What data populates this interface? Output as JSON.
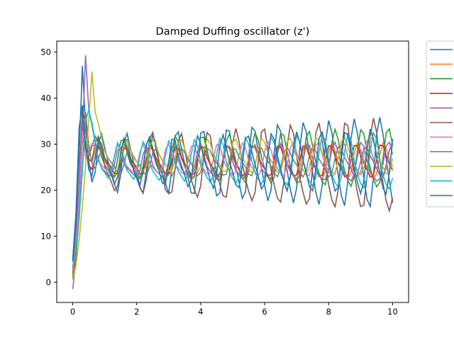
{
  "chart_data": {
    "type": "line",
    "title": "Damped Duffing oscillator (z')",
    "xlabel": "",
    "ylabel": "",
    "xlim": [
      -0.5,
      10.5
    ],
    "ylim": [
      -4.4,
      52.4
    ],
    "xticks": [
      0,
      2,
      4,
      6,
      8,
      10
    ],
    "yticks": [
      0,
      10,
      20,
      30,
      40,
      50
    ],
    "grid": false,
    "legend": "outside-top-right",
    "x": [
      0.0,
      0.1,
      0.2,
      0.3,
      0.4,
      0.5,
      0.6,
      0.7,
      0.8,
      0.9,
      1.0,
      1.1,
      1.2,
      1.3,
      1.4,
      1.5,
      1.6,
      1.7,
      1.8,
      1.9,
      2.0,
      2.1,
      2.2,
      2.3,
      2.4,
      2.5,
      2.6,
      2.7,
      2.8,
      2.9,
      3.0,
      3.1,
      3.2,
      3.3,
      3.4,
      3.5,
      3.6,
      3.7,
      3.8,
      3.9,
      4.0,
      4.1,
      4.2,
      4.3,
      4.4,
      4.5,
      4.6,
      4.7,
      4.8,
      4.9,
      5.0,
      5.1,
      5.2,
      5.3,
      5.4,
      5.5,
      5.6,
      5.7,
      5.8,
      5.9,
      6.0,
      6.1,
      6.2,
      6.3,
      6.4,
      6.5,
      6.6,
      6.7,
      6.8,
      6.9,
      7.0,
      7.1,
      7.2,
      7.3,
      7.4,
      7.5,
      7.6,
      7.7,
      7.8,
      7.9,
      8.0,
      8.1,
      8.2,
      8.3,
      8.4,
      8.5,
      8.6,
      8.7,
      8.8,
      8.9,
      9.0,
      9.1,
      9.2,
      9.3,
      9.4,
      9.5,
      9.6,
      9.7,
      9.8,
      9.9,
      10.0
    ],
    "series": [
      {
        "color": "#1f77b4",
        "base": 25.8,
        "amp": 5.0,
        "period": 0.79,
        "phase": 0.4,
        "growth": 0.09,
        "start": 4.5,
        "peak": 47.0,
        "peak_t": 0.3
      },
      {
        "color": "#ff7f0e",
        "base": 26.0,
        "amp": 3.0,
        "period": 0.81,
        "phase": 1.3,
        "growth": 0.02,
        "start": 1.5,
        "peak": 40.0,
        "peak_t": 0.35
      },
      {
        "color": "#2ca02c",
        "base": 26.5,
        "amp": 3.5,
        "period": 0.83,
        "phase": 2.1,
        "growth": 0.08,
        "start": 2.0,
        "peak": 38.0,
        "peak_t": 0.35
      },
      {
        "color": "#d62728",
        "base": 26.2,
        "amp": 2.5,
        "period": 0.8,
        "phase": 0.9,
        "growth": 0.04,
        "start": 1.0,
        "peak": 35.0,
        "peak_t": 0.3
      },
      {
        "color": "#9467bd",
        "base": 25.6,
        "amp": 2.8,
        "period": 0.84,
        "phase": 3.0,
        "growth": 0.05,
        "start": -1.5,
        "peak": 49.3,
        "peak_t": 0.4
      },
      {
        "color": "#8c564b",
        "base": 25.0,
        "amp": 4.5,
        "period": 0.86,
        "phase": 1.8,
        "growth": 0.12,
        "start": 3.0,
        "peak": 46.0,
        "peak_t": 0.35
      },
      {
        "color": "#e377c2",
        "base": 26.3,
        "amp": 2.6,
        "period": 0.78,
        "phase": 2.5,
        "growth": 0.05,
        "start": 2.5,
        "peak": 33.0,
        "peak_t": 0.3
      },
      {
        "color": "#7f7f7f",
        "base": 26.1,
        "amp": 2.4,
        "period": 0.82,
        "phase": 0.2,
        "growth": 0.03,
        "start": 1.2,
        "peak": 37.0,
        "peak_t": 0.4
      },
      {
        "color": "#bcbd22",
        "base": 27.2,
        "amp": 2.8,
        "period": 0.85,
        "phase": 1.5,
        "growth": 0.04,
        "start": 0.5,
        "peak": 45.8,
        "peak_t": 0.6
      },
      {
        "color": "#17becf",
        "base": 25.8,
        "amp": 3.2,
        "period": 0.8,
        "phase": 2.8,
        "growth": 0.09,
        "start": 3.5,
        "peak": 41.0,
        "peak_t": 0.45
      },
      {
        "color": "#1f77b4",
        "base": 26.0,
        "amp": 4.0,
        "period": 0.77,
        "phase": 0.7,
        "growth": 0.07,
        "start": 5.0,
        "peak": 45.0,
        "peak_t": 0.25
      }
    ]
  }
}
